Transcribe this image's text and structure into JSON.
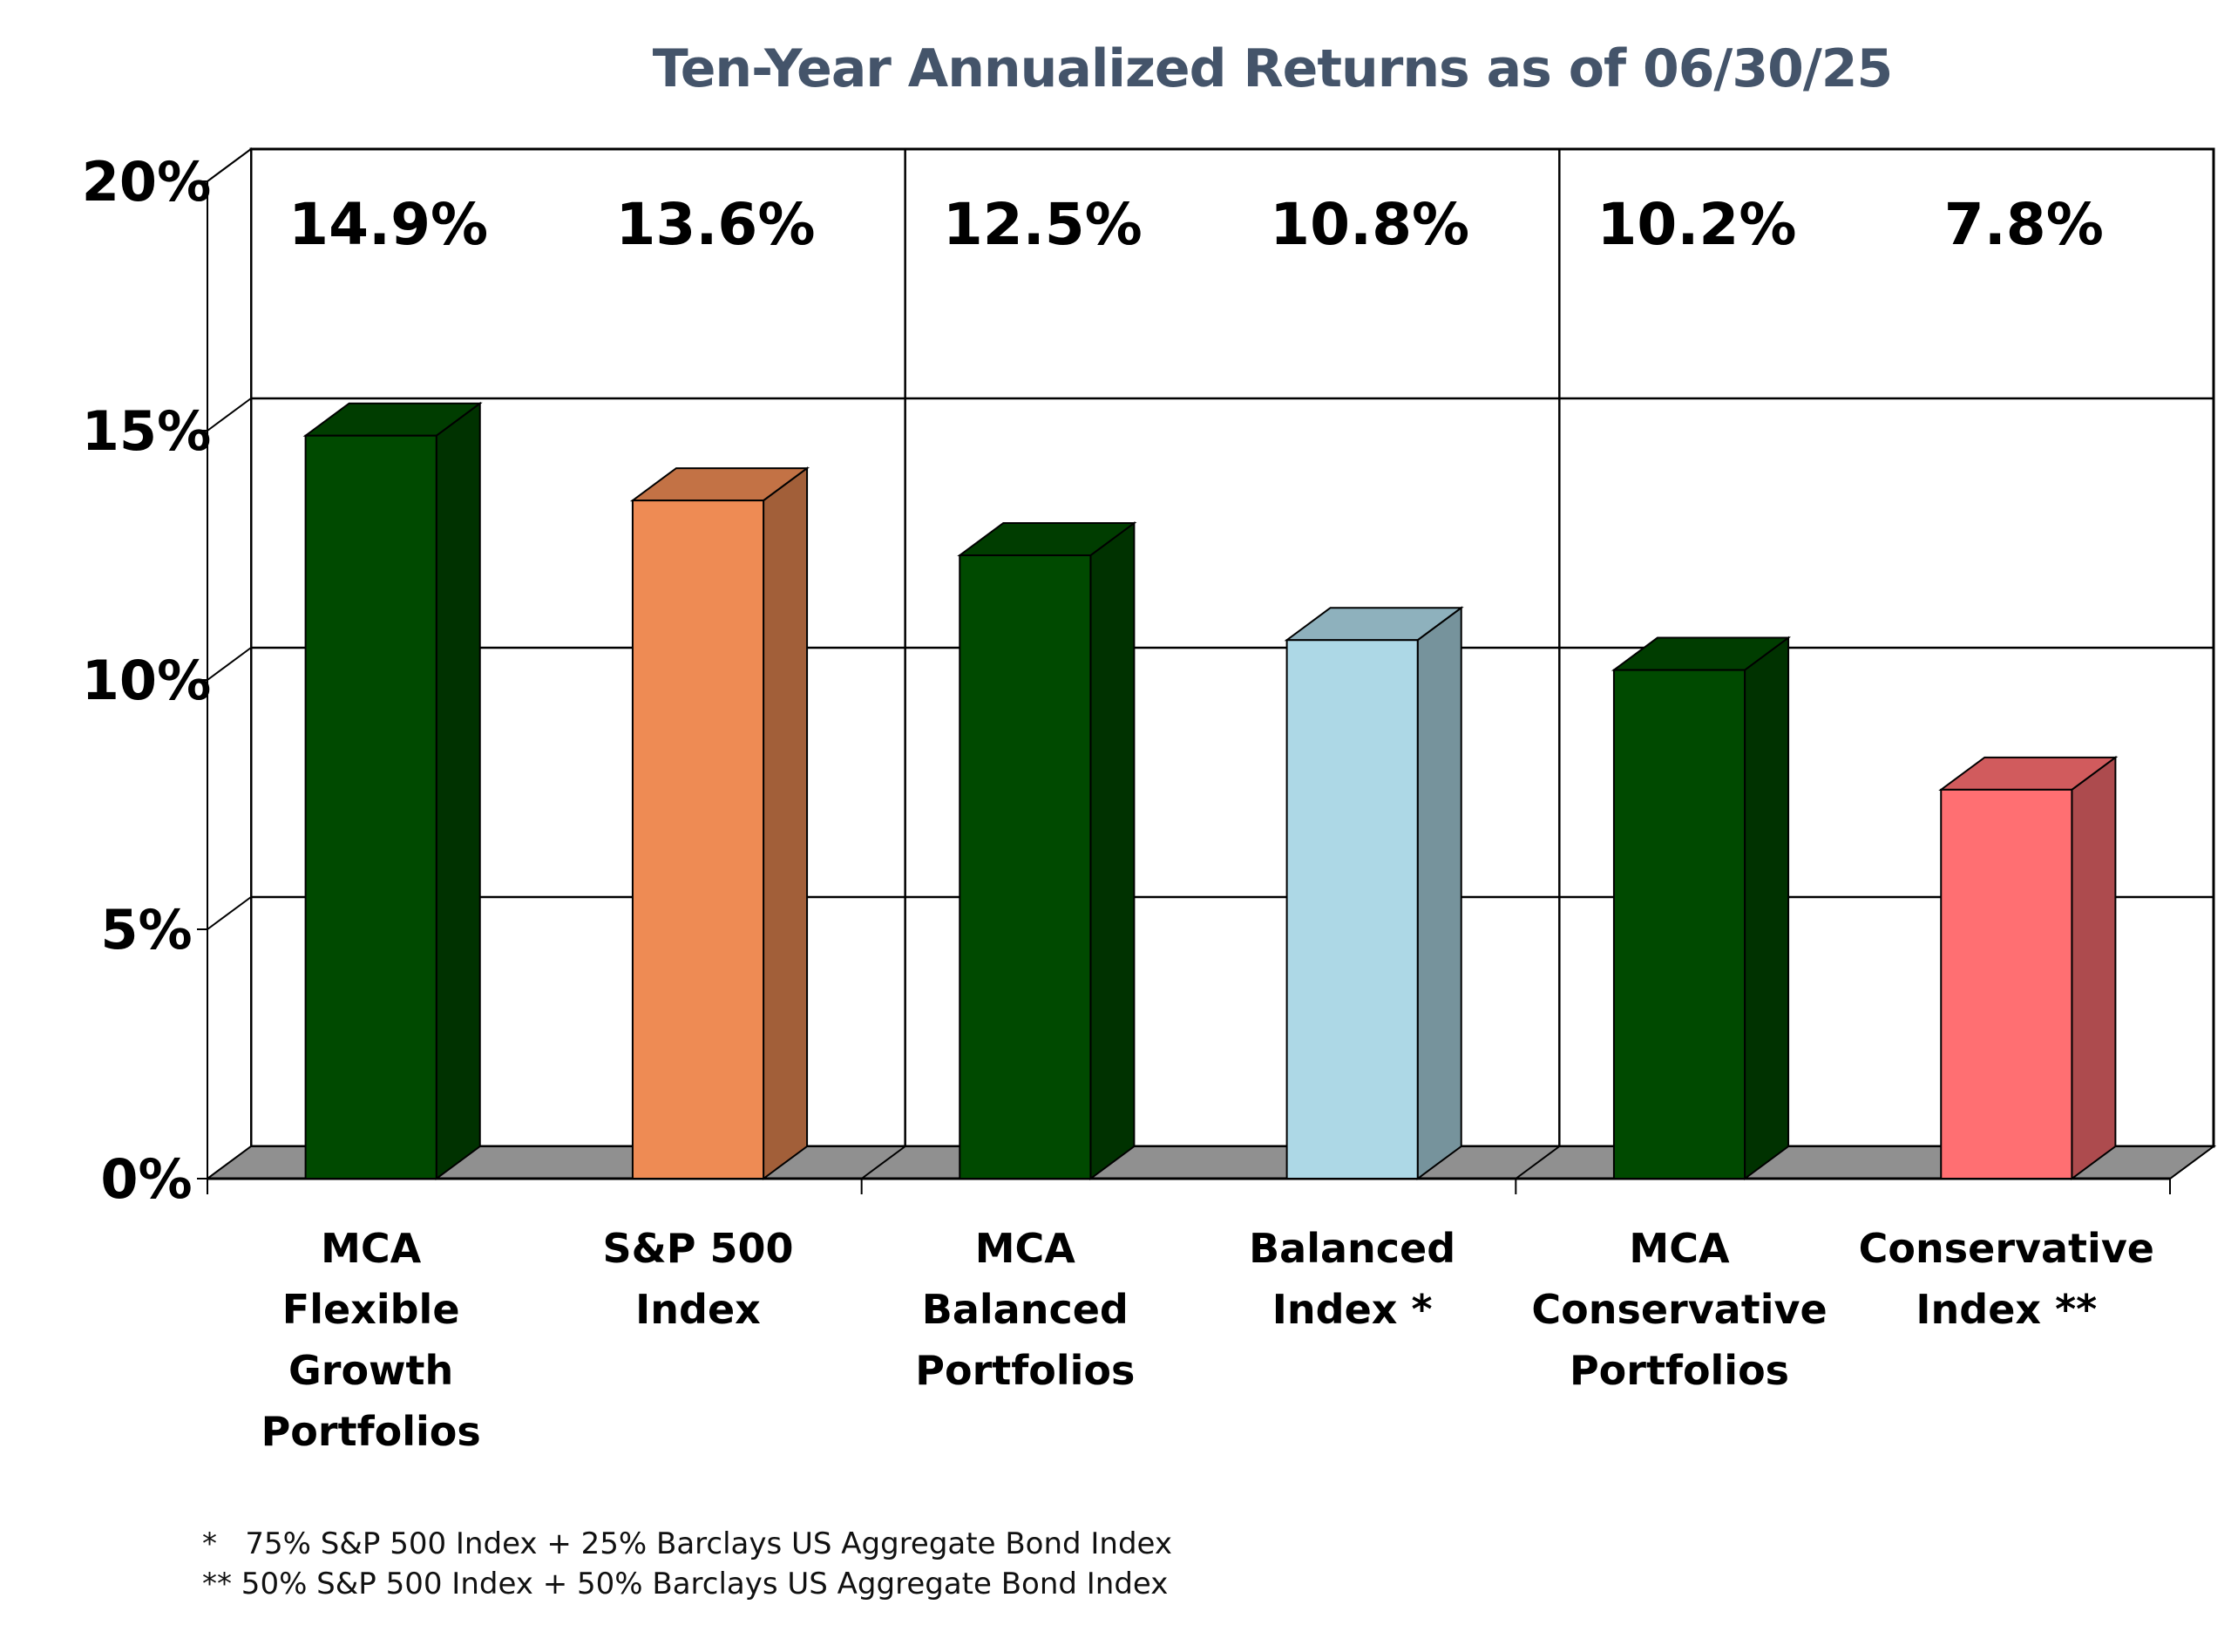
{
  "chart_data": {
    "type": "bar",
    "title": "Ten-Year Annualized Returns as of 06/30/25",
    "categories": [
      [
        "MCA",
        "Flexible",
        "Growth",
        "Portfolios"
      ],
      [
        "S&P 500",
        "Index"
      ],
      [
        "MCA",
        "Balanced",
        "Portfolios"
      ],
      [
        "Balanced",
        "Index *"
      ],
      [
        "MCA",
        "Conservative",
        "Portfolios"
      ],
      [
        "Conservative",
        "Index **"
      ]
    ],
    "values": [
      14.9,
      13.6,
      12.5,
      10.8,
      10.2,
      7.8
    ],
    "data_labels": [
      "14.9%",
      "13.6%",
      "12.5%",
      "10.8%",
      "10.2%",
      "7.8%"
    ],
    "y_ticks": [
      "0%",
      "5%",
      "10%",
      "15%",
      "20%"
    ],
    "ylim": [
      0,
      20
    ],
    "grid": true,
    "bar_colors": [
      "#004a00",
      "#ee8b54",
      "#004a00",
      "#add8e6",
      "#004a00",
      "#ff6f72"
    ]
  },
  "footnotes": [
    "*   75% S&P 500 Index + 25% Barclays US Aggregate Bond Index",
    "** 50% S&P 500 Index + 50% Barclays US Aggregate Bond Index"
  ]
}
